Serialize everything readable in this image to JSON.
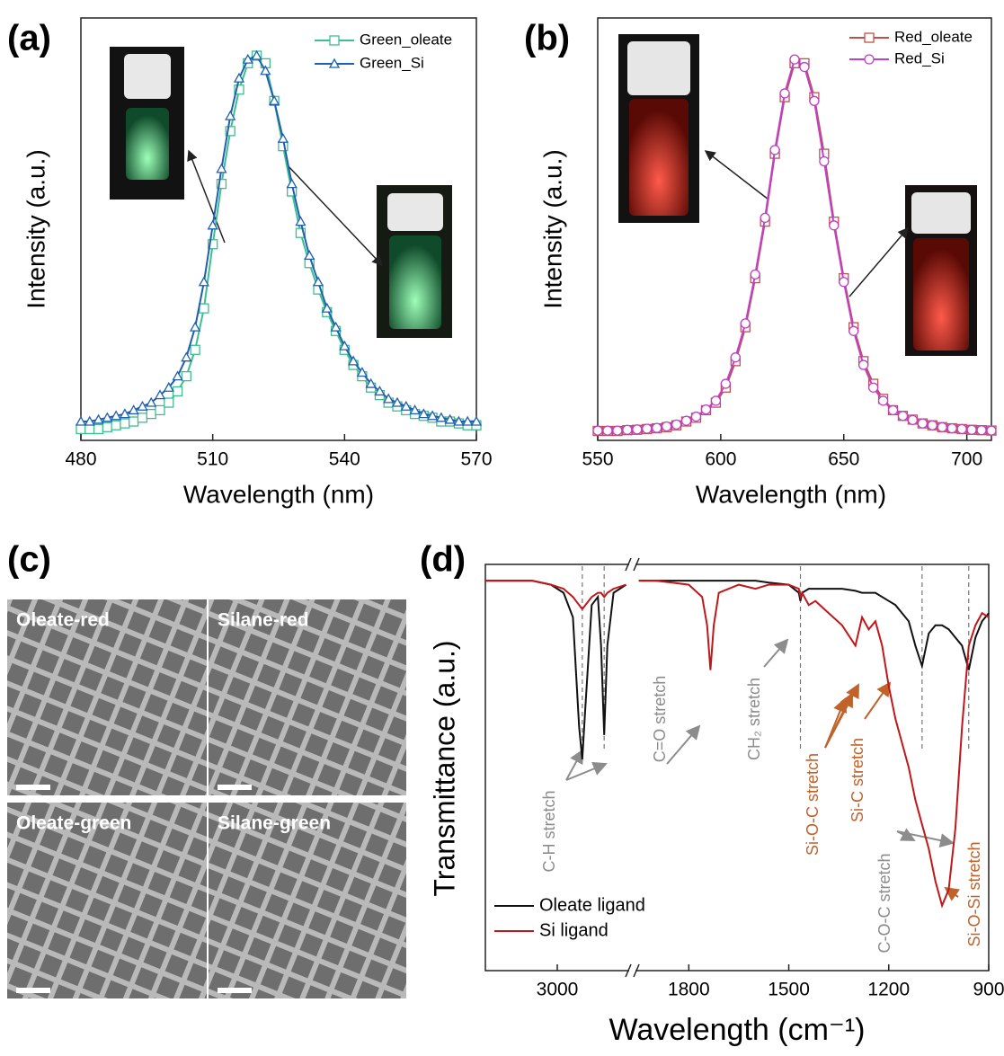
{
  "chart_data": [
    {
      "type": "line",
      "label": "(a)",
      "x_label": "Wavelength (nm)",
      "y_label": "Intensity (a.u.)",
      "xlim": [
        480,
        570
      ],
      "ylim": [
        -0.02,
        1.1
      ],
      "xticks": [
        480,
        510,
        540,
        570
      ],
      "x": [
        480,
        482,
        484,
        486,
        488,
        490,
        492,
        494,
        496,
        498,
        500,
        502,
        504,
        506,
        508,
        510,
        512,
        514,
        516,
        518,
        520,
        522,
        524,
        526,
        528,
        530,
        532,
        534,
        536,
        538,
        540,
        542,
        544,
        546,
        548,
        550,
        552,
        554,
        556,
        558,
        560,
        562,
        564,
        566,
        568,
        570
      ],
      "series": [
        {
          "name": "Green_oleate",
          "color": "#3cbf8f",
          "marker": "square",
          "values": [
            0.01,
            0.01,
            0.01,
            0.015,
            0.02,
            0.025,
            0.03,
            0.04,
            0.05,
            0.06,
            0.08,
            0.11,
            0.15,
            0.22,
            0.33,
            0.5,
            0.66,
            0.8,
            0.91,
            0.98,
            1.0,
            0.98,
            0.88,
            0.76,
            0.64,
            0.53,
            0.45,
            0.38,
            0.32,
            0.27,
            0.22,
            0.18,
            0.15,
            0.12,
            0.1,
            0.08,
            0.07,
            0.06,
            0.05,
            0.045,
            0.04,
            0.03,
            0.03,
            0.025,
            0.02,
            0.02
          ]
        },
        {
          "name": "Green_Si",
          "color": "#1f5fb0",
          "marker": "triangle",
          "values": [
            0.03,
            0.03,
            0.035,
            0.04,
            0.045,
            0.05,
            0.06,
            0.07,
            0.08,
            0.1,
            0.12,
            0.15,
            0.2,
            0.28,
            0.4,
            0.55,
            0.7,
            0.84,
            0.94,
            0.99,
            1.0,
            0.96,
            0.88,
            0.78,
            0.66,
            0.56,
            0.47,
            0.4,
            0.33,
            0.28,
            0.23,
            0.19,
            0.16,
            0.13,
            0.11,
            0.09,
            0.08,
            0.07,
            0.06,
            0.05,
            0.045,
            0.04,
            0.035,
            0.03,
            0.03,
            0.03
          ]
        }
      ]
    },
    {
      "type": "line",
      "label": "(b)",
      "x_label": "Wavelength (nm)",
      "y_label": "Intensity (a.u.)",
      "xlim": [
        550,
        710
      ],
      "ylim": [
        -0.02,
        1.1
      ],
      "xticks": [
        550,
        600,
        650,
        700
      ],
      "x": [
        550,
        554,
        558,
        562,
        566,
        570,
        574,
        578,
        582,
        586,
        590,
        594,
        598,
        602,
        606,
        610,
        614,
        618,
        622,
        626,
        630,
        634,
        638,
        642,
        646,
        650,
        654,
        658,
        662,
        666,
        670,
        674,
        678,
        682,
        686,
        690,
        694,
        698,
        702,
        706,
        710
      ],
      "series": [
        {
          "name": "Red_oleate",
          "color": "#c0504d",
          "marker": "square",
          "values": [
            0.005,
            0.005,
            0.005,
            0.007,
            0.008,
            0.01,
            0.012,
            0.015,
            0.02,
            0.03,
            0.04,
            0.06,
            0.08,
            0.12,
            0.19,
            0.28,
            0.41,
            0.56,
            0.74,
            0.89,
            0.98,
            0.98,
            0.89,
            0.74,
            0.56,
            0.41,
            0.28,
            0.19,
            0.13,
            0.09,
            0.06,
            0.045,
            0.035,
            0.025,
            0.02,
            0.015,
            0.012,
            0.01,
            0.008,
            0.007,
            0.006
          ]
        },
        {
          "name": "Red_Si",
          "color": "#c040c8",
          "marker": "circle",
          "values": [
            0.006,
            0.006,
            0.006,
            0.008,
            0.009,
            0.011,
            0.013,
            0.017,
            0.022,
            0.032,
            0.043,
            0.062,
            0.085,
            0.13,
            0.2,
            0.29,
            0.42,
            0.57,
            0.75,
            0.9,
            0.99,
            0.97,
            0.88,
            0.72,
            0.55,
            0.4,
            0.27,
            0.18,
            0.12,
            0.085,
            0.06,
            0.045,
            0.034,
            0.025,
            0.02,
            0.015,
            0.012,
            0.01,
            0.008,
            0.007,
            0.006
          ]
        }
      ]
    },
    {
      "type": "image",
      "label": "(c)",
      "images": [
        "Oleate-red",
        "Silane-red",
        "Oleate-green",
        "Silane-green"
      ]
    },
    {
      "type": "line",
      "label": "(d)",
      "x_label": "Wavelength (cm⁻¹)",
      "y_label": "Transmittance (a.u.)",
      "xlim": [
        3230,
        900
      ],
      "xbreak": [
        2770,
        1960
      ],
      "ylim": [
        0,
        1
      ],
      "xticks": [
        3000,
        1800,
        1500,
        1200,
        900
      ],
      "reference_lines": [
        2920,
        2850,
        1465,
        1100,
        960
      ],
      "x": [
        3230,
        3150,
        3080,
        3020,
        2980,
        2950,
        2930,
        2920,
        2910,
        2890,
        2870,
        2860,
        2850,
        2840,
        2820,
        2780,
        1950,
        1900,
        1850,
        1800,
        1760,
        1745,
        1735,
        1725,
        1710,
        1650,
        1600,
        1560,
        1500,
        1470,
        1465,
        1460,
        1440,
        1420,
        1380,
        1340,
        1300,
        1280,
        1260,
        1240,
        1220,
        1200,
        1180,
        1160,
        1140,
        1120,
        1100,
        1080,
        1060,
        1040,
        1020,
        1000,
        980,
        960,
        940,
        920,
        900
      ],
      "series": [
        {
          "name": "Oleate ligand",
          "color": "#111111",
          "values": [
            0.96,
            0.96,
            0.96,
            0.95,
            0.93,
            0.87,
            0.6,
            0.52,
            0.65,
            0.9,
            0.92,
            0.8,
            0.58,
            0.8,
            0.93,
            0.95,
            0.96,
            0.96,
            0.96,
            0.96,
            0.96,
            0.96,
            0.96,
            0.96,
            0.96,
            0.96,
            0.96,
            0.955,
            0.95,
            0.93,
            0.91,
            0.93,
            0.94,
            0.94,
            0.94,
            0.94,
            0.935,
            0.93,
            0.93,
            0.93,
            0.92,
            0.91,
            0.9,
            0.88,
            0.86,
            0.8,
            0.75,
            0.83,
            0.85,
            0.85,
            0.84,
            0.82,
            0.8,
            0.74,
            0.82,
            0.86,
            0.88
          ]
        },
        {
          "name": "Si ligand",
          "color": "#c0171b",
          "values": [
            0.96,
            0.96,
            0.96,
            0.95,
            0.94,
            0.92,
            0.9,
            0.89,
            0.9,
            0.92,
            0.93,
            0.93,
            0.92,
            0.93,
            0.94,
            0.95,
            0.96,
            0.96,
            0.955,
            0.95,
            0.92,
            0.85,
            0.74,
            0.85,
            0.93,
            0.95,
            0.94,
            0.95,
            0.95,
            0.94,
            0.92,
            0.93,
            0.9,
            0.91,
            0.88,
            0.85,
            0.8,
            0.87,
            0.84,
            0.86,
            0.8,
            0.7,
            0.62,
            0.56,
            0.5,
            0.42,
            0.36,
            0.3,
            0.22,
            0.16,
            0.2,
            0.35,
            0.6,
            0.8,
            0.85,
            0.88,
            0.87
          ]
        }
      ],
      "annotations": [
        {
          "text": "C-H stretch",
          "color": "#8c8c8c"
        },
        {
          "text": "C=O stretch",
          "color": "#8c8c8c"
        },
        {
          "text": "CH₂ stretch",
          "color": "#8c8c8c"
        },
        {
          "text": "Si-O-C stretch",
          "color": "#c0622a"
        },
        {
          "text": "Si-C stretch",
          "color": "#c0622a"
        },
        {
          "text": "C-O-C stretch",
          "color": "#8c8c8c"
        },
        {
          "text": "Si-O-Si stretch",
          "color": "#c0622a"
        }
      ]
    }
  ]
}
